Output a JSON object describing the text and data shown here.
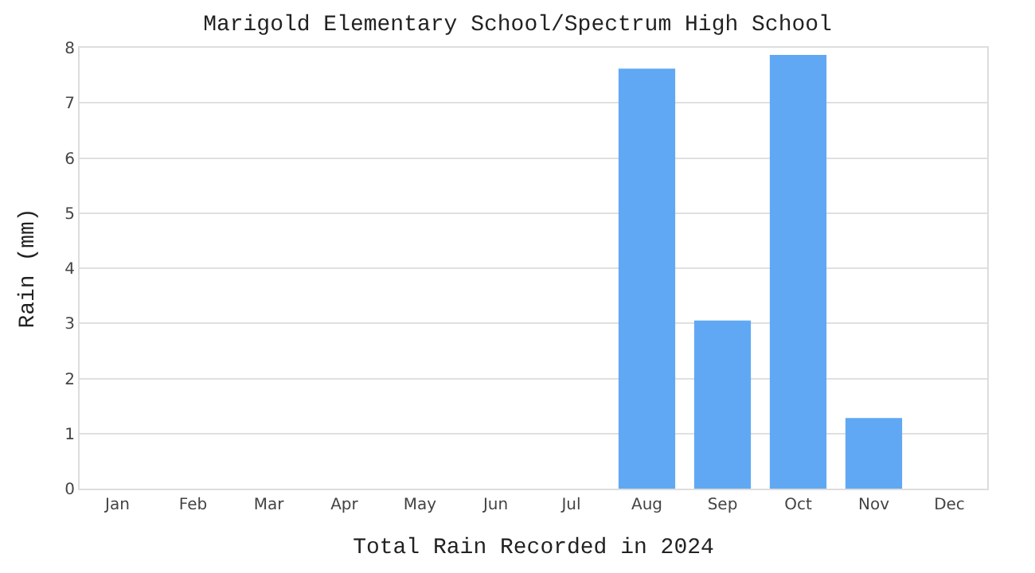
{
  "chart_data": {
    "type": "bar",
    "title": "Marigold Elementary School/Spectrum High School",
    "xlabel": "Total Rain Recorded in 2024",
    "ylabel": "Rain (mm)",
    "categories": [
      "Jan",
      "Feb",
      "Mar",
      "Apr",
      "May",
      "Jun",
      "Jul",
      "Aug",
      "Sep",
      "Oct",
      "Nov",
      "Dec"
    ],
    "values": [
      0,
      0,
      0,
      0,
      0,
      0,
      0,
      7.62,
      3.05,
      7.87,
      1.28,
      0
    ],
    "color": "#60a8f4",
    "ylim": [
      0,
      8
    ],
    "yticks": [
      0,
      1,
      2,
      3,
      4,
      5,
      6,
      7,
      8
    ],
    "grid": "y"
  }
}
